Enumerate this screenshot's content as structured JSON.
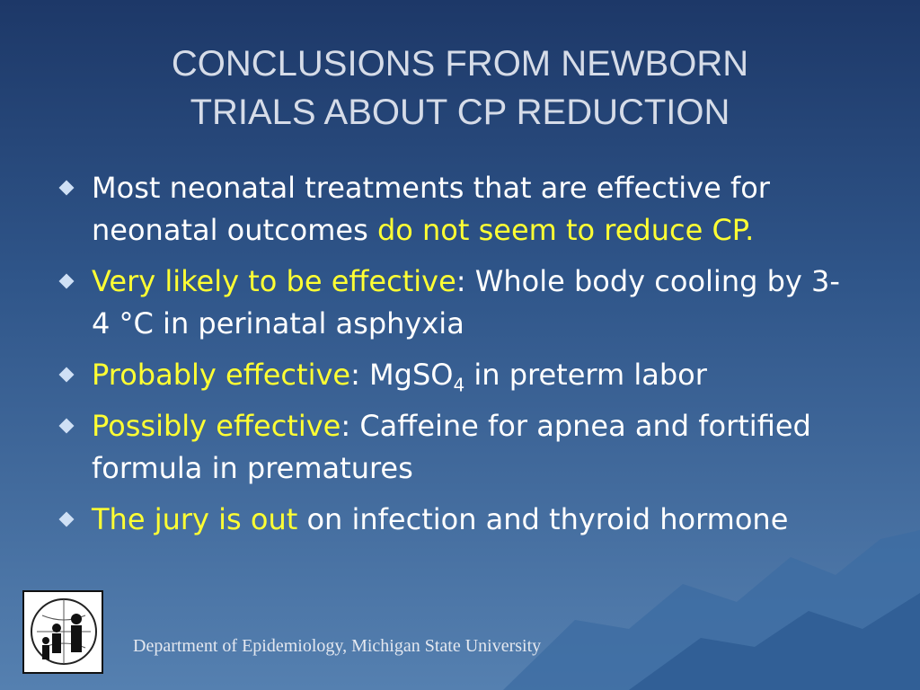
{
  "title": {
    "lines": [
      "CONCLUSIONS FROM NEWBORN",
      "TRIALS ABOUT CP REDUCTION"
    ]
  },
  "bullets": [
    {
      "segments": [
        {
          "text": "Most neonatal treatments that are effective for neonatal outcomes ",
          "highlight": false
        },
        {
          "text": "do not seem to reduce CP.",
          "highlight": true
        }
      ]
    },
    {
      "segments": [
        {
          "text": "Very likely to be effective",
          "highlight": true
        },
        {
          "text": ": Whole body cooling by 3-4 °C in perinatal asphyxia",
          "highlight": false
        }
      ]
    },
    {
      "segments": [
        {
          "text": "Probably effective",
          "highlight": true
        },
        {
          "text": ": MgSO",
          "highlight": false
        },
        {
          "text": "4",
          "highlight": false,
          "sub": true
        },
        {
          "text": " in preterm labor",
          "highlight": false
        }
      ]
    },
    {
      "segments": [
        {
          "text": "Possibly effective",
          "highlight": true
        },
        {
          "text": ": Caffeine for apnea and fortified formula in prematures",
          "highlight": false
        }
      ]
    },
    {
      "segments": [
        {
          "text": "The jury is out",
          "highlight": true
        },
        {
          "text": " on infection and thyroid hormone",
          "highlight": false
        }
      ]
    }
  ],
  "footer": {
    "text": "Department of Epidemiology, Michigan State University"
  }
}
